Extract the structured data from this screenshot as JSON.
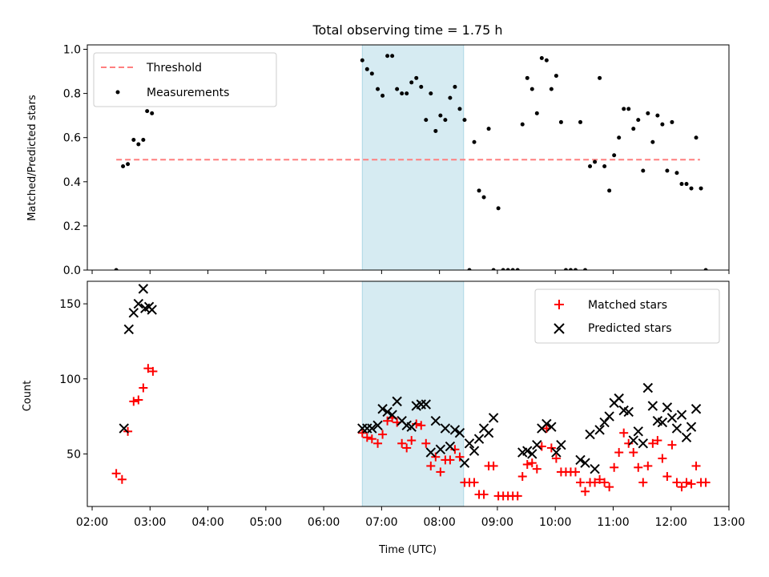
{
  "chart_data": [
    {
      "type": "scatter",
      "title": "Total observing time = 1.75 h",
      "xlabel": "",
      "ylabel": "Matched/Predicted stars",
      "xlim": [
        "01:55",
        "13:00"
      ],
      "ylim": [
        0,
        1.02
      ],
      "yticks": [
        "0.0",
        "0.2",
        "0.4",
        "0.6",
        "0.8",
        "1.0"
      ],
      "shaded_span": [
        "06:40",
        "08:25"
      ],
      "legend": {
        "position": "upper left",
        "entries": [
          "Threshold",
          "Measurements"
        ]
      },
      "threshold": {
        "name": "Threshold",
        "value": 0.5,
        "x": [
          "02:25",
          "12:30"
        ],
        "color": "#ff7f7f",
        "style": "dashed"
      },
      "series": [
        {
          "name": "Measurements",
          "color": "#000000",
          "points": [
            [
              "02:25",
              0.0
            ],
            [
              "02:32",
              0.47
            ],
            [
              "02:37",
              0.48
            ],
            [
              "02:43",
              0.59
            ],
            [
              "02:48",
              0.57
            ],
            [
              "02:53",
              0.59
            ],
            [
              "02:57",
              0.72
            ],
            [
              "03:02",
              0.71
            ],
            [
              "06:40",
              0.95
            ],
            [
              "06:45",
              0.91
            ],
            [
              "06:50",
              0.89
            ],
            [
              "06:56",
              0.82
            ],
            [
              "07:01",
              0.79
            ],
            [
              "07:06",
              0.97
            ],
            [
              "07:11",
              0.97
            ],
            [
              "07:16",
              0.82
            ],
            [
              "07:21",
              0.8
            ],
            [
              "07:26",
              0.8
            ],
            [
              "07:31",
              0.85
            ],
            [
              "07:36",
              0.87
            ],
            [
              "07:41",
              0.83
            ],
            [
              "07:46",
              0.68
            ],
            [
              "07:51",
              0.8
            ],
            [
              "07:56",
              0.63
            ],
            [
              "08:01",
              0.7
            ],
            [
              "08:06",
              0.68
            ],
            [
              "08:11",
              0.78
            ],
            [
              "08:16",
              0.83
            ],
            [
              "08:21",
              0.73
            ],
            [
              "08:26",
              0.68
            ],
            [
              "08:31",
              0.0
            ],
            [
              "08:36",
              0.58
            ],
            [
              "08:41",
              0.36
            ],
            [
              "08:46",
              0.33
            ],
            [
              "08:51",
              0.64
            ],
            [
              "08:56",
              0.0
            ],
            [
              "09:01",
              0.28
            ],
            [
              "09:06",
              0.0
            ],
            [
              "09:11",
              0.0
            ],
            [
              "09:16",
              0.0
            ],
            [
              "09:21",
              0.0
            ],
            [
              "09:26",
              0.66
            ],
            [
              "09:31",
              0.87
            ],
            [
              "09:36",
              0.82
            ],
            [
              "09:41",
              0.71
            ],
            [
              "09:46",
              0.96
            ],
            [
              "09:51",
              0.95
            ],
            [
              "09:56",
              0.82
            ],
            [
              "10:01",
              0.88
            ],
            [
              "10:06",
              0.67
            ],
            [
              "10:11",
              0.0
            ],
            [
              "10:16",
              0.0
            ],
            [
              "10:21",
              0.0
            ],
            [
              "10:26",
              0.67
            ],
            [
              "10:31",
              0.0
            ],
            [
              "10:36",
              0.47
            ],
            [
              "10:41",
              0.49
            ],
            [
              "10:46",
              0.87
            ],
            [
              "10:51",
              0.47
            ],
            [
              "10:56",
              0.36
            ],
            [
              "11:01",
              0.52
            ],
            [
              "11:06",
              0.6
            ],
            [
              "11:11",
              0.73
            ],
            [
              "11:16",
              0.73
            ],
            [
              "11:21",
              0.64
            ],
            [
              "11:26",
              0.68
            ],
            [
              "11:31",
              0.45
            ],
            [
              "11:36",
              0.71
            ],
            [
              "11:41",
              0.58
            ],
            [
              "11:46",
              0.7
            ],
            [
              "11:51",
              0.66
            ],
            [
              "11:56",
              0.45
            ],
            [
              "12:01",
              0.67
            ],
            [
              "12:06",
              0.44
            ],
            [
              "12:11",
              0.39
            ],
            [
              "12:16",
              0.39
            ],
            [
              "12:21",
              0.37
            ],
            [
              "12:26",
              0.6
            ],
            [
              "12:31",
              0.37
            ],
            [
              "12:36",
              0.0
            ]
          ]
        }
      ]
    },
    {
      "type": "scatter",
      "title": "",
      "xlabel": "Time (UTC)",
      "ylabel": "Count",
      "xlim": [
        "01:55",
        "13:00"
      ],
      "ylim": [
        15,
        165
      ],
      "xticks": [
        "02:00",
        "03:00",
        "04:00",
        "05:00",
        "06:00",
        "07:00",
        "08:00",
        "09:00",
        "10:00",
        "11:00",
        "12:00",
        "13:00"
      ],
      "yticks": [
        "50",
        "100",
        "150"
      ],
      "shaded_span": [
        "06:40",
        "08:25"
      ],
      "legend": {
        "position": "upper right",
        "entries": [
          "Matched stars",
          "Predicted stars"
        ]
      },
      "series": [
        {
          "name": "Matched stars",
          "marker": "plus",
          "color": "#ff0000",
          "points": [
            [
              "02:25",
              37
            ],
            [
              "02:31",
              33
            ],
            [
              "02:37",
              65
            ],
            [
              "02:43",
              85
            ],
            [
              "02:48",
              86
            ],
            [
              "02:53",
              94
            ],
            [
              "02:58",
              107
            ],
            [
              "03:03",
              105
            ],
            [
              "06:40",
              64
            ],
            [
              "06:45",
              61
            ],
            [
              "06:50",
              60
            ],
            [
              "06:56",
              57
            ],
            [
              "07:01",
              63
            ],
            [
              "07:06",
              72
            ],
            [
              "07:11",
              74
            ],
            [
              "07:16",
              71
            ],
            [
              "07:21",
              57
            ],
            [
              "07:26",
              54
            ],
            [
              "07:31",
              59
            ],
            [
              "07:36",
              70
            ],
            [
              "07:41",
              69
            ],
            [
              "07:46",
              57
            ],
            [
              "07:51",
              42
            ],
            [
              "07:56",
              48
            ],
            [
              "08:01",
              38
            ],
            [
              "08:06",
              46
            ],
            [
              "08:11",
              46
            ],
            [
              "08:16",
              53
            ],
            [
              "08:21",
              48
            ],
            [
              "08:26",
              31
            ],
            [
              "08:31",
              31
            ],
            [
              "08:36",
              31
            ],
            [
              "08:41",
              23
            ],
            [
              "08:46",
              23
            ],
            [
              "08:51",
              42
            ],
            [
              "08:56",
              42
            ],
            [
              "09:01",
              22
            ],
            [
              "09:06",
              22
            ],
            [
              "09:11",
              22
            ],
            [
              "09:16",
              22
            ],
            [
              "09:21",
              22
            ],
            [
              "09:26",
              35
            ],
            [
              "09:31",
              43
            ],
            [
              "09:36",
              44
            ],
            [
              "09:41",
              40
            ],
            [
              "09:46",
              55
            ],
            [
              "09:51",
              67
            ],
            [
              "09:56",
              54
            ],
            [
              "10:01",
              47
            ],
            [
              "10:06",
              38
            ],
            [
              "10:11",
              38
            ],
            [
              "10:16",
              38
            ],
            [
              "10:21",
              38
            ],
            [
              "10:26",
              31
            ],
            [
              "10:31",
              25
            ],
            [
              "10:36",
              31
            ],
            [
              "10:41",
              31
            ],
            [
              "10:46",
              33
            ],
            [
              "10:51",
              31
            ],
            [
              "10:56",
              28
            ],
            [
              "11:01",
              41
            ],
            [
              "11:06",
              51
            ],
            [
              "11:11",
              64
            ],
            [
              "11:16",
              57
            ],
            [
              "11:21",
              51
            ],
            [
              "11:26",
              41
            ],
            [
              "11:31",
              31
            ],
            [
              "11:36",
              42
            ],
            [
              "11:41",
              57
            ],
            [
              "11:46",
              59
            ],
            [
              "11:51",
              47
            ],
            [
              "11:56",
              35
            ],
            [
              "12:01",
              56
            ],
            [
              "12:06",
              31
            ],
            [
              "12:11",
              28
            ],
            [
              "12:16",
              31
            ],
            [
              "12:21",
              30
            ],
            [
              "12:26",
              42
            ],
            [
              "12:31",
              31
            ],
            [
              "12:36",
              31
            ]
          ]
        },
        {
          "name": "Predicted stars",
          "marker": "x",
          "color": "#000000",
          "points": [
            [
              "02:33",
              67
            ],
            [
              "02:38",
              133
            ],
            [
              "02:43",
              144
            ],
            [
              "02:48",
              150
            ],
            [
              "02:53",
              160
            ],
            [
              "02:55",
              147
            ],
            [
              "02:59",
              148
            ],
            [
              "03:02",
              146
            ],
            [
              "06:40",
              67
            ],
            [
              "06:45",
              67
            ],
            [
              "06:50",
              67
            ],
            [
              "06:56",
              69
            ],
            [
              "07:01",
              80
            ],
            [
              "07:06",
              78
            ],
            [
              "07:11",
              76
            ],
            [
              "07:16",
              85
            ],
            [
              "07:21",
              72
            ],
            [
              "07:26",
              69
            ],
            [
              "07:31",
              68
            ],
            [
              "07:36",
              82
            ],
            [
              "07:41",
              83
            ],
            [
              "07:46",
              83
            ],
            [
              "07:51",
              51
            ],
            [
              "07:56",
              72
            ],
            [
              "08:01",
              53
            ],
            [
              "08:06",
              67
            ],
            [
              "08:11",
              55
            ],
            [
              "08:16",
              66
            ],
            [
              "08:21",
              64
            ],
            [
              "08:26",
              44
            ],
            [
              "08:31",
              57
            ],
            [
              "08:36",
              52
            ],
            [
              "08:41",
              60
            ],
            [
              "08:46",
              67
            ],
            [
              "08:51",
              64
            ],
            [
              "08:56",
              74
            ],
            [
              "09:26",
              51
            ],
            [
              "09:31",
              52
            ],
            [
              "09:36",
              50
            ],
            [
              "09:41",
              56
            ],
            [
              "09:46",
              67
            ],
            [
              "09:51",
              70
            ],
            [
              "09:56",
              68
            ],
            [
              "10:01",
              51
            ],
            [
              "10:06",
              56
            ],
            [
              "10:26",
              46
            ],
            [
              "10:31",
              44
            ],
            [
              "10:36",
              63
            ],
            [
              "10:41",
              40
            ],
            [
              "10:46",
              66
            ],
            [
              "10:51",
              71
            ],
            [
              "10:56",
              75
            ],
            [
              "11:01",
              84
            ],
            [
              "11:06",
              87
            ],
            [
              "11:11",
              79
            ],
            [
              "11:16",
              78
            ],
            [
              "11:21",
              59
            ],
            [
              "11:26",
              65
            ],
            [
              "11:31",
              57
            ],
            [
              "11:36",
              94
            ],
            [
              "11:41",
              82
            ],
            [
              "11:46",
              72
            ],
            [
              "11:51",
              71
            ],
            [
              "11:56",
              81
            ],
            [
              "12:01",
              74
            ],
            [
              "12:06",
              67
            ],
            [
              "12:11",
              76
            ],
            [
              "12:16",
              61
            ],
            [
              "12:21",
              68
            ],
            [
              "12:26",
              80
            ]
          ]
        }
      ]
    }
  ]
}
